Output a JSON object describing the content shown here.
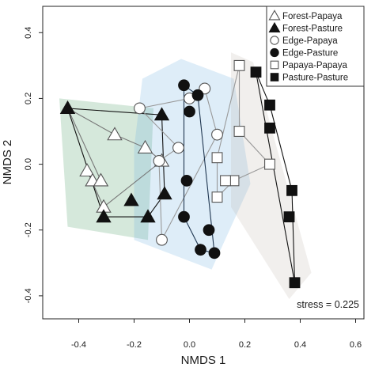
{
  "chart_data": {
    "type": "scatter",
    "xlabel": "NMDS 1",
    "ylabel": "NMDS 2",
    "xlim": [
      -0.53,
      0.63
    ],
    "ylim": [
      -0.47,
      0.48
    ],
    "xticks": [
      -0.4,
      -0.2,
      0.0,
      0.2,
      0.4,
      0.6
    ],
    "xtick_labels": [
      "-0.4",
      "-0.2",
      "0.0",
      "0.2",
      "0.4",
      "0.6"
    ],
    "yticks": [
      -0.4,
      -0.2,
      0.0,
      0.2,
      0.4
    ],
    "ytick_labels": [
      "-0.4",
      "-0.2",
      "0.0",
      "0.2",
      "0.4"
    ],
    "grid": false,
    "legend_position": "top-right",
    "annotation": "stress = 0.225",
    "hulls": [
      {
        "color": "#2e8b4a",
        "opacity": 0.2,
        "points": [
          [
            -0.47,
            0.2
          ],
          [
            -0.13,
            0.17
          ],
          [
            -0.15,
            -0.23
          ],
          [
            -0.44,
            -0.19
          ]
        ]
      },
      {
        "color": "#68aee0",
        "opacity": 0.22,
        "points": [
          [
            -0.17,
            0.26
          ],
          [
            -0.03,
            0.32
          ],
          [
            0.16,
            0.26
          ],
          [
            0.22,
            -0.06
          ],
          [
            0.08,
            -0.32
          ],
          [
            -0.2,
            -0.23
          ],
          [
            -0.2,
            0.05
          ]
        ]
      },
      {
        "color": "#b2a79b",
        "opacity": 0.18,
        "points": [
          [
            0.15,
            0.34
          ],
          [
            0.23,
            0.31
          ],
          [
            0.44,
            -0.33
          ],
          [
            0.36,
            -0.41
          ],
          [
            0.15,
            -0.13
          ]
        ]
      }
    ],
    "series": [
      {
        "name": "Forest-Papaya",
        "marker": "triangle-open",
        "line_color": "#777777",
        "x": [
          -0.44,
          -0.37,
          -0.35,
          -0.32,
          -0.31,
          -0.16,
          -0.1,
          -0.27
        ],
        "y": [
          0.17,
          -0.02,
          -0.05,
          -0.05,
          -0.13,
          0.05,
          0.01,
          0.09
        ],
        "hull_path": [
          [
            -0.44,
            0.17
          ],
          [
            -0.27,
            0.09
          ],
          [
            -0.16,
            0.05
          ],
          [
            -0.1,
            0.01
          ],
          [
            -0.31,
            -0.13
          ],
          [
            -0.37,
            -0.02
          ],
          [
            -0.35,
            -0.05
          ],
          [
            -0.32,
            -0.05
          ],
          [
            -0.44,
            0.17
          ]
        ]
      },
      {
        "name": "Forest-Pasture",
        "marker": "triangle-filled",
        "line_color": "#111111",
        "x": [
          -0.44,
          -0.1,
          -0.09,
          -0.15,
          -0.21,
          -0.31
        ],
        "y": [
          0.17,
          0.15,
          -0.09,
          -0.16,
          -0.11,
          -0.16
        ],
        "hull_path": [
          [
            -0.44,
            0.17
          ],
          [
            -0.1,
            0.15
          ],
          [
            -0.09,
            -0.09
          ],
          [
            -0.15,
            -0.16
          ],
          [
            -0.31,
            -0.16
          ],
          [
            -0.44,
            0.17
          ]
        ]
      },
      {
        "name": "Edge-Papaya",
        "marker": "circle-open",
        "line_color": "#999999",
        "x": [
          -0.18,
          0.0,
          0.055,
          0.1,
          -0.1,
          -0.11,
          -0.04
        ],
        "y": [
          0.17,
          0.2,
          0.23,
          0.09,
          -0.23,
          0.01,
          0.05
        ],
        "hull_path": [
          [
            -0.18,
            0.17
          ],
          [
            0.0,
            0.2
          ],
          [
            0.055,
            0.23
          ],
          [
            0.1,
            0.09
          ],
          [
            -0.1,
            -0.23
          ],
          [
            -0.11,
            0.01
          ],
          [
            -0.04,
            0.05
          ],
          [
            -0.18,
            0.17
          ]
        ]
      },
      {
        "name": "Edge-Pasture",
        "marker": "circle-filled",
        "line_color": "#1f3650",
        "x": [
          -0.02,
          0.03,
          0.0,
          -0.01,
          0.07,
          0.09,
          0.04,
          -0.02
        ],
        "y": [
          0.24,
          0.21,
          0.16,
          -0.05,
          -0.2,
          -0.27,
          -0.26,
          -0.16
        ],
        "hull_path": [
          [
            -0.02,
            0.24
          ],
          [
            0.03,
            0.21
          ],
          [
            0.09,
            -0.27
          ],
          [
            0.04,
            -0.26
          ],
          [
            -0.02,
            -0.16
          ],
          [
            -0.02,
            0.24
          ]
        ]
      },
      {
        "name": "Papaya-Papaya",
        "marker": "square-open",
        "line_color": "#999999",
        "x": [
          0.18,
          0.18,
          0.29,
          0.16,
          0.13,
          0.1,
          0.1
        ],
        "y": [
          0.3,
          0.1,
          0.0,
          -0.05,
          -0.05,
          0.02,
          -0.1
        ],
        "hull_path": [
          [
            0.18,
            0.3
          ],
          [
            0.18,
            0.1
          ],
          [
            0.29,
            0.0
          ],
          [
            0.16,
            -0.05
          ],
          [
            0.1,
            -0.1
          ],
          [
            0.1,
            0.02
          ],
          [
            0.18,
            0.3
          ]
        ]
      },
      {
        "name": "Pasture-Pasture",
        "marker": "square-filled",
        "line_color": "#111111",
        "x": [
          0.24,
          0.29,
          0.29,
          0.37,
          0.36,
          0.38
        ],
        "y": [
          0.28,
          0.18,
          0.11,
          -0.08,
          -0.16,
          -0.36
        ],
        "hull_path": [
          [
            0.24,
            0.28
          ],
          [
            0.29,
            0.18
          ],
          [
            0.37,
            -0.08
          ],
          [
            0.38,
            -0.36
          ],
          [
            0.24,
            0.28
          ]
        ]
      }
    ]
  }
}
